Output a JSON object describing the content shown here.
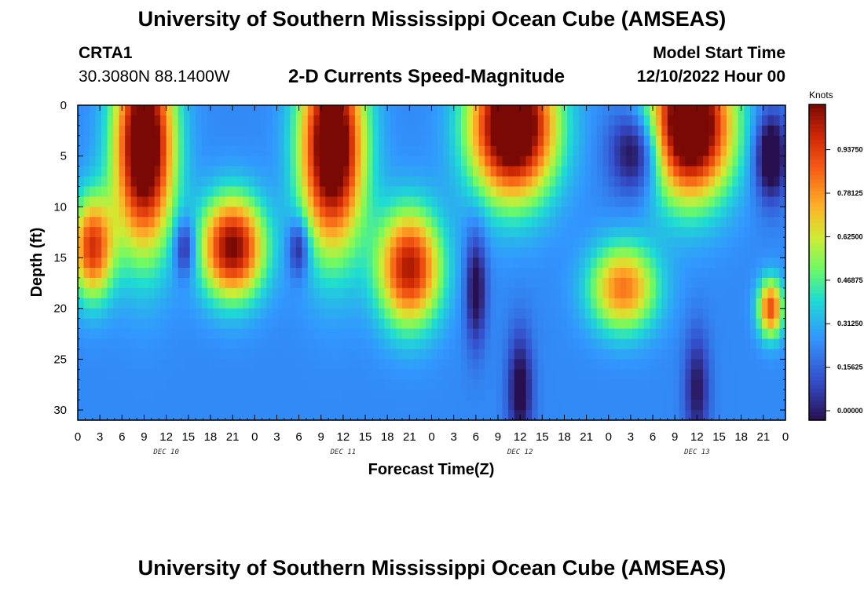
{
  "header": {
    "title": "University of Southern Mississippi Ocean Cube (AMSEAS)",
    "station": "CRTA1",
    "coordinates": "30.3080N  88.1400W",
    "subtitle": "2-D Currents Speed-Magnitude",
    "start_label": "Model Start Time",
    "start_value": "12/10/2022 Hour 00"
  },
  "footer": {
    "title": "University of Southern Mississippi Ocean Cube (AMSEAS)"
  },
  "chart_data": {
    "type": "heatmap",
    "title": "2-D Currents Speed-Magnitude",
    "xlabel": "Forecast Time(Z)",
    "ylabel": "Depth (ft)",
    "x_range_hours": [
      0,
      96
    ],
    "y_range_ft": [
      0,
      31
    ],
    "x_tick_labels": [
      "0",
      "3",
      "6",
      "9",
      "12",
      "15",
      "18",
      "21",
      "0",
      "3",
      "6",
      "9",
      "12",
      "15",
      "18",
      "21",
      "0",
      "3",
      "6",
      "9",
      "12",
      "15",
      "18",
      "21",
      "0",
      "3",
      "6",
      "9",
      "12",
      "15",
      "18",
      "21",
      "0"
    ],
    "y_ticks": [
      0,
      5,
      10,
      15,
      20,
      25,
      30
    ],
    "day_labels": [
      {
        "label": "DEC 10",
        "hour": 12
      },
      {
        "label": "DEC 11",
        "hour": 36
      },
      {
        "label": "DEC 12",
        "hour": 60
      },
      {
        "label": "DEC 13",
        "hour": 84
      }
    ],
    "colorbar": {
      "units": "Knots",
      "min": 0,
      "max": 1.1,
      "tick_values": [
        0.0,
        0.15625,
        0.3125,
        0.46875,
        0.625,
        0.78125,
        0.9375
      ],
      "tick_labels": [
        "0.00000",
        "0.15625",
        "0.31250",
        "0.46875",
        "0.62500",
        "0.78125",
        "0.93750"
      ]
    },
    "features": [
      {
        "t": 9,
        "d": 4,
        "v": 1.05,
        "st": 2.8,
        "sd": 7
      },
      {
        "t": 2,
        "d": 14,
        "v": 0.7,
        "st": 2,
        "sd": 3.5
      },
      {
        "t": 21,
        "d": 14,
        "v": 0.85,
        "st": 3,
        "sd": 3.5
      },
      {
        "t": 34.5,
        "d": 4,
        "v": 1.05,
        "st": 3,
        "sd": 7
      },
      {
        "t": 45,
        "d": 16,
        "v": 0.78,
        "st": 3,
        "sd": 4
      },
      {
        "t": 59,
        "d": 2,
        "v": 1.1,
        "st": 4,
        "sd": 5
      },
      {
        "t": 74,
        "d": 18,
        "v": 0.58,
        "st": 3.2,
        "sd": 3
      },
      {
        "t": 83,
        "d": 2,
        "v": 1.1,
        "st": 4,
        "sd": 5
      },
      {
        "t": 94,
        "d": 20,
        "v": 0.65,
        "st": 1.2,
        "sd": 2
      },
      {
        "t": 76,
        "d": 4.5,
        "v": -0.4,
        "st": 2.5,
        "sd": 3
      },
      {
        "t": 94,
        "d": 5,
        "v": -0.4,
        "st": 1.5,
        "sd": 3
      },
      {
        "t": 14.5,
        "d": 14,
        "v": -0.3,
        "st": 1,
        "sd": 2
      },
      {
        "t": 30,
        "d": 14,
        "v": -0.3,
        "st": 1,
        "sd": 2
      },
      {
        "t": 54,
        "d": 18,
        "v": -0.3,
        "st": 1,
        "sd": 4
      },
      {
        "t": 60,
        "d": 28,
        "v": -0.3,
        "st": 1.2,
        "sd": 4
      },
      {
        "t": 84,
        "d": 28,
        "v": -0.25,
        "st": 1.2,
        "sd": 4
      }
    ]
  }
}
